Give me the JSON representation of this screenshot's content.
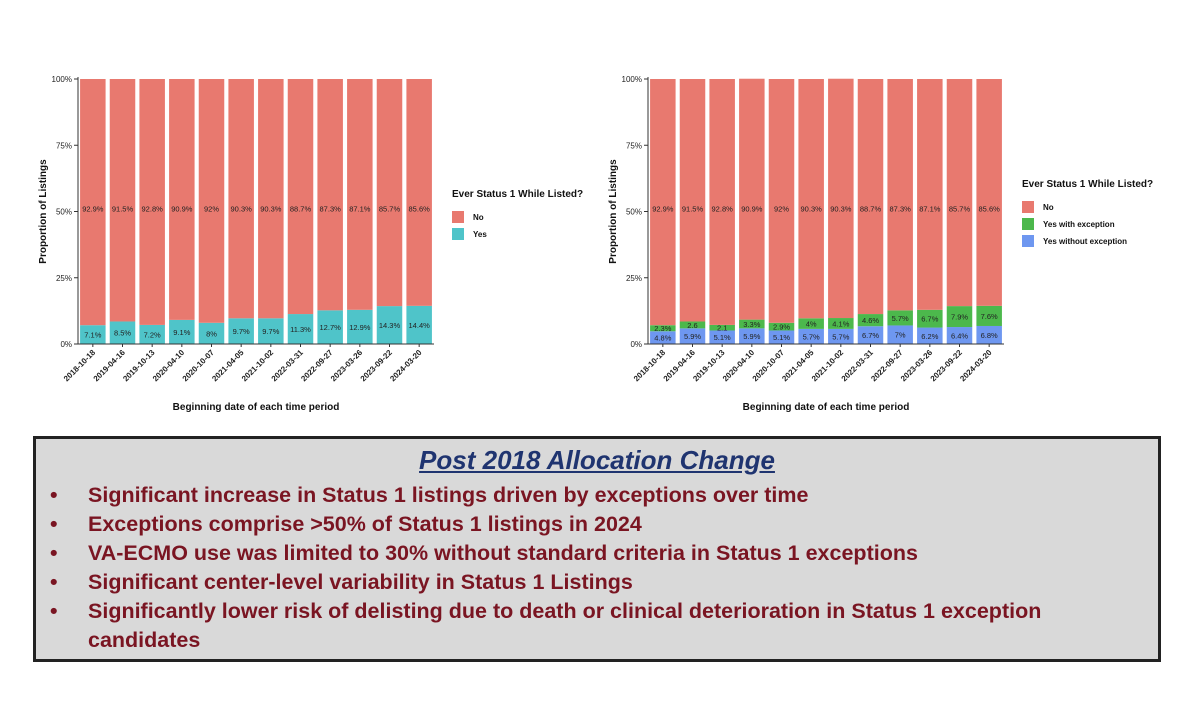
{
  "chart_data": [
    {
      "type": "bar",
      "stacked": true,
      "categories": [
        "2018-10-18",
        "2019-04-16",
        "2019-10-13",
        "2020-04-10",
        "2020-10-07",
        "2021-04-05",
        "2021-10-02",
        "2022-03-31",
        "2022-09-27",
        "2023-03-26",
        "2023-09-22",
        "2024-03-20"
      ],
      "series": [
        {
          "name": "No",
          "color": "#e8796f",
          "values": [
            92.9,
            91.5,
            92.8,
            90.9,
            92,
            90.3,
            90.3,
            88.7,
            87.3,
            87.1,
            85.7,
            85.6
          ],
          "labels": [
            "92.9%",
            "91.5%",
            "92.8%",
            "90.9%",
            "92%",
            "90.3%",
            "90.3%",
            "88.7%",
            "87.3%",
            "87.1%",
            "85.7%",
            "85.6%"
          ]
        },
        {
          "name": "Yes",
          "color": "#4fc4c9",
          "values": [
            7.1,
            8.5,
            7.2,
            9.1,
            8,
            9.7,
            9.7,
            11.3,
            12.7,
            12.9,
            14.3,
            14.4
          ],
          "labels": [
            "7.1%",
            "8.5%",
            "7.2%",
            "9.1%",
            "8%",
            "9.7%",
            "9.7%",
            "11.3%",
            "12.7%",
            "12.9%",
            "14.3%",
            "14.4%"
          ]
        }
      ],
      "ylabel": "Proportion of Listings",
      "xlabel": "Beginning date of each time period",
      "yticks": [
        "0%",
        "25%",
        "50%",
        "75%",
        "100%"
      ],
      "ylim": [
        0,
        100
      ],
      "legend_title": "Ever Status 1 While Listed?",
      "legend_position": "right"
    },
    {
      "type": "bar",
      "stacked": true,
      "categories": [
        "2018-10-18",
        "2019-04-16",
        "2019-10-13",
        "2020-04-10",
        "2020-10-07",
        "2021-04-05",
        "2021-10-02",
        "2022-03-31",
        "2022-09-27",
        "2023-03-26",
        "2023-09-22",
        "2024-03-20"
      ],
      "series": [
        {
          "name": "No",
          "color": "#e8796f",
          "values": [
            92.9,
            91.5,
            92.8,
            90.9,
            92,
            90.3,
            90.3,
            88.7,
            87.3,
            87.1,
            85.7,
            85.6
          ],
          "labels": [
            "92.9%",
            "91.5%",
            "92.8%",
            "90.9%",
            "92%",
            "90.3%",
            "90.3%",
            "88.7%",
            "87.3%",
            "87.1%",
            "85.7%",
            "85.6%"
          ]
        },
        {
          "name": "Yes with exception",
          "color": "#4cb84c",
          "values": [
            2.3,
            2.6,
            2.1,
            3.3,
            2.9,
            4,
            4.1,
            4.6,
            5.7,
            6.7,
            7.9,
            7.6
          ],
          "labels": [
            "2.3%",
            "2.6",
            "2.1",
            "3.3%",
            "2.9%",
            "4%",
            "4.1%",
            "4.6%",
            "5.7%",
            "6.7%",
            "7.9%",
            "7.6%"
          ]
        },
        {
          "name": "Yes without exception",
          "color": "#6e97f0",
          "values": [
            4.8,
            5.9,
            5.1,
            5.9,
            5.1,
            5.7,
            5.7,
            6.7,
            7,
            6.2,
            6.4,
            6.8
          ],
          "labels": [
            "4.8%",
            "5.9%",
            "5.1%",
            "5.9%",
            "5.1%",
            "5.7%",
            "5.7%",
            "6.7%",
            "7%",
            "6.2%",
            "6.4%",
            "6.8%"
          ]
        }
      ],
      "ylabel": "Proportion of Listings",
      "xlabel": "Beginning date of each time period",
      "yticks": [
        "0%",
        "25%",
        "50%",
        "75%",
        "100%"
      ],
      "ylim": [
        0,
        100
      ],
      "legend_title": "Ever Status 1 While Listed?",
      "legend_position": "right"
    }
  ],
  "summary": {
    "title": "Post 2018 Allocation Change",
    "bullet_char": "•",
    "bullets": [
      "Significant increase in Status 1 listings driven by exceptions over time",
      "Exceptions comprise >50% of Status 1 listings in 2024",
      "VA-ECMO use was limited to 30% without standard criteria in Status 1 exceptions",
      "Significant center-level variability in Status 1 Listings",
      "Significantly lower risk of delisting due to death or clinical deterioration in Status 1 exception candidates"
    ]
  }
}
